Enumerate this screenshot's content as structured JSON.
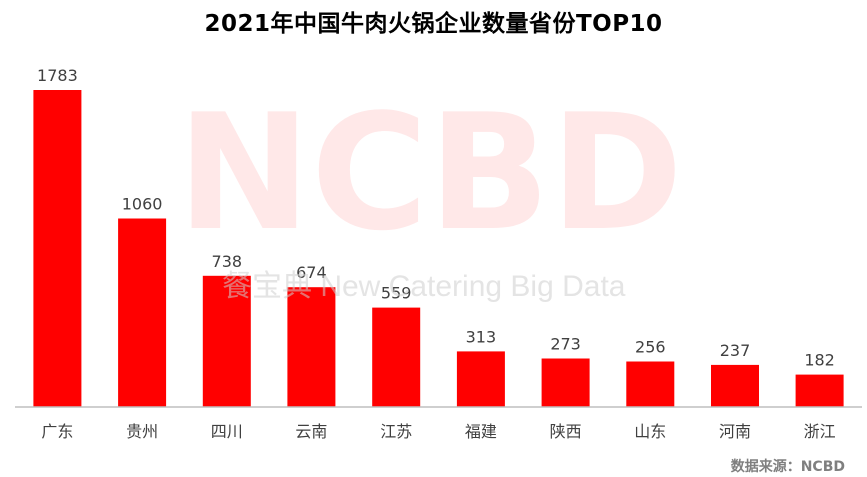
{
  "watermark": {
    "logo_text": "NCBD",
    "subtitle": "餐宝典 New Catering Big Data"
  },
  "source": "数据来源：NCBD",
  "chart_data": {
    "type": "bar",
    "title": "2021年中国牛肉火锅企业数量省份TOP10",
    "categories": [
      "广东",
      "贵州",
      "四川",
      "云南",
      "江苏",
      "福建",
      "陕西",
      "山东",
      "河南",
      "浙江"
    ],
    "values": [
      1783,
      1060,
      738,
      674,
      559,
      313,
      273,
      256,
      237,
      182
    ],
    "xlabel": "",
    "ylabel": "",
    "ylim": [
      0,
      1783
    ],
    "bar_color": "#FF0000",
    "axis_color": "#BFBFBF",
    "label_color": "#404040",
    "grid": false,
    "legend": "none"
  }
}
